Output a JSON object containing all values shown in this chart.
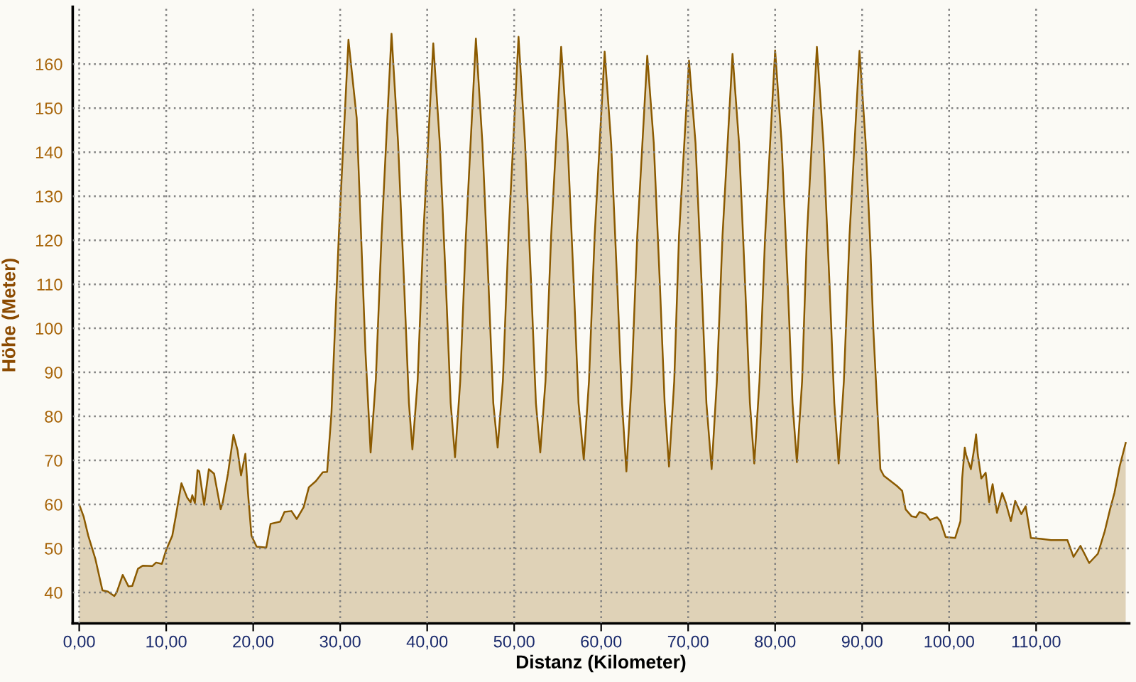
{
  "chart_data": {
    "type": "area",
    "xlabel": "Distanz (Kilometer)",
    "ylabel": "Höhe (Meter)",
    "x": [
      0,
      0.5,
      1.04,
      1.86,
      2.67,
      3.3,
      4.03,
      4.3,
      5.0,
      5.66,
      6.1,
      6.75,
      7.3,
      8.4,
      8.83,
      9.5,
      10.0,
      10.7,
      11.1,
      11.75,
      12.4,
      12.8,
      13.0,
      13.3,
      13.6,
      13.8,
      14.36,
      14.9,
      15.5,
      16.26,
      16.5,
      17.1,
      17.73,
      18.2,
      18.6,
      19.1,
      19.4,
      19.8,
      20.4,
      21.5,
      22.0,
      23.1,
      23.6,
      24.4,
      25.0,
      25.8,
      26.4,
      27.2,
      28.0,
      28.5,
      29.0,
      29.86,
      30.95,
      31.9,
      32.9,
      33.5,
      34.1,
      34.75,
      35.9,
      36.65,
      37.35,
      37.9,
      38.3,
      38.9,
      39.55,
      40.7,
      41.45,
      42.15,
      42.7,
      43.2,
      43.8,
      44.45,
      45.6,
      46.35,
      47.05,
      47.6,
      48.1,
      48.7,
      49.35,
      50.5,
      51.25,
      51.95,
      52.5,
      53.0,
      53.6,
      54.25,
      55.4,
      56.15,
      56.85,
      57.4,
      58.0,
      58.6,
      59.25,
      60.4,
      61.15,
      61.85,
      62.4,
      62.9,
      63.5,
      64.15,
      65.3,
      66.05,
      66.75,
      67.3,
      67.8,
      68.4,
      68.95,
      70.1,
      70.85,
      71.55,
      72.1,
      72.7,
      73.3,
      73.95,
      75.1,
      75.85,
      76.55,
      77.1,
      77.6,
      78.2,
      78.85,
      80.0,
      80.75,
      81.45,
      82.0,
      82.5,
      83.1,
      83.65,
      84.8,
      85.55,
      86.25,
      86.8,
      87.3,
      87.9,
      88.55,
      89.7,
      90.4,
      90.9,
      91.3,
      91.85,
      92.1,
      92.5,
      94.0,
      94.6,
      95.0,
      95.7,
      96.2,
      96.6,
      97.3,
      97.8,
      98.6,
      99.0,
      99.6,
      100.7,
      101.3,
      101.5,
      101.8,
      101.95,
      102.5,
      102.9,
      103.1,
      103.3,
      103.7,
      104.2,
      104.6,
      105.0,
      105.5,
      106.1,
      106.5,
      107.1,
      107.6,
      108.3,
      108.8,
      109.4,
      110.6,
      111.7,
      113.6,
      114.3,
      115.1,
      116.1,
      117.1,
      117.9,
      118.5,
      119.0,
      119.6,
      120.3
    ],
    "series": [
      {
        "color": "#8b5a00",
        "values": [
          60,
          57.3,
          52.9,
          47.6,
          40.5,
          40.2,
          39.2,
          40,
          44,
          41.4,
          41.5,
          45.4,
          46.1,
          46,
          46.8,
          46.5,
          49.7,
          52.9,
          57.3,
          64.8,
          61.6,
          60.5,
          62.1,
          60.3,
          67.8,
          67.5,
          59.9,
          68,
          67,
          58.9,
          60.5,
          67,
          75.8,
          72.3,
          66.6,
          71.5,
          62.6,
          52.9,
          50.4,
          50.2,
          55.6,
          56.1,
          58.3,
          58.5,
          56.7,
          59.4,
          63.9,
          65.3,
          67.3,
          67.4,
          80.9,
          121.9,
          165.5,
          147.7,
          94.9,
          71.8,
          88.5,
          120.8,
          166.9,
          142.3,
          110,
          83.1,
          72.5,
          88,
          121,
          164.7,
          142,
          110,
          83,
          70.7,
          88,
          121,
          165.8,
          142,
          110,
          83,
          72.9,
          88,
          121,
          166.2,
          142,
          110,
          83,
          71.8,
          88,
          121,
          163.9,
          142,
          110,
          83,
          70.2,
          88,
          121,
          162.8,
          142,
          110,
          83,
          67.5,
          88,
          121,
          161.9,
          142,
          110,
          83,
          68.6,
          88,
          121,
          160.8,
          142,
          110,
          83,
          68.0,
          88,
          121,
          162.3,
          142,
          110,
          83,
          69.3,
          88,
          121,
          163.1,
          142,
          110,
          83,
          69.6,
          88,
          121,
          163.9,
          142,
          110,
          83,
          69.3,
          88,
          121,
          163.0,
          142.3,
          120.8,
          99.3,
          77.8,
          68.0,
          66.5,
          64.2,
          63.1,
          58.9,
          57.3,
          57.1,
          58.3,
          57.8,
          56.5,
          57.1,
          56.2,
          52.6,
          52.4,
          56.2,
          65.9,
          72.9,
          71.3,
          68.0,
          72.9,
          75.9,
          71.3,
          65.9,
          67.2,
          60.5,
          64.6,
          58.1,
          62.6,
          60.5,
          56.2,
          60.8,
          57.8,
          59.6,
          52.4,
          52.2,
          51.9,
          51.9,
          48.1,
          50.6,
          46.7,
          48.8,
          54.0,
          58.9,
          62.6,
          68.6,
          74.0
        ]
      }
    ],
    "xlim": [
      -0.75,
      120.7
    ],
    "ylim": [
      33,
      173
    ],
    "xticks": [
      {
        "value": 0,
        "label": "0,00"
      },
      {
        "value": 10,
        "label": "10,00"
      },
      {
        "value": 20,
        "label": "20,00"
      },
      {
        "value": 30,
        "label": "30,00"
      },
      {
        "value": 40,
        "label": "40,00"
      },
      {
        "value": 50,
        "label": "50,00"
      },
      {
        "value": 60,
        "label": "60,00"
      },
      {
        "value": 70,
        "label": "70,00"
      },
      {
        "value": 80,
        "label": "80,00"
      },
      {
        "value": 90,
        "label": "90,00"
      },
      {
        "value": 100,
        "label": "100,00"
      },
      {
        "value": 110,
        "label": "110,00"
      }
    ],
    "yticks": [
      40,
      50,
      60,
      70,
      80,
      90,
      100,
      110,
      120,
      130,
      140,
      150,
      160
    ],
    "grid": true
  }
}
